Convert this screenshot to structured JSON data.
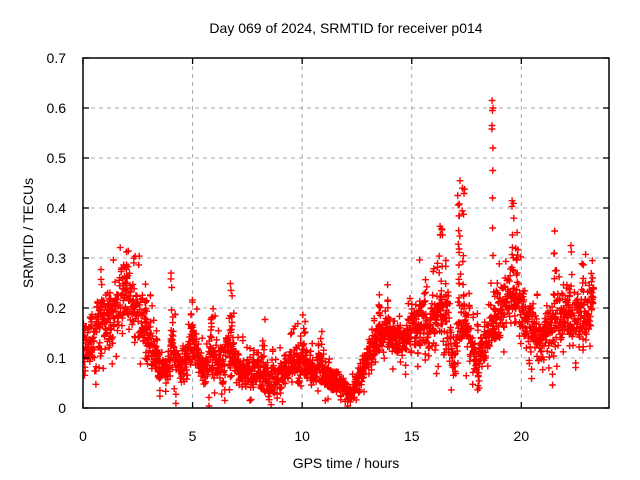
{
  "title": "Day 069 of 2024, SRMTID for receiver p014",
  "colors": {
    "background": "#ffffff",
    "points": "#ff0000",
    "grid": "#a8a8a8",
    "axis": "#000000",
    "text": "#000000"
  },
  "chart_data": {
    "type": "scatter",
    "title": "Day 069 of 2024, SRMTID for receiver p014",
    "xlabel": "GPS time / hours",
    "ylabel": "SRMTID / TECUs",
    "marker": "plus",
    "marker_color": "#ff0000",
    "grid": true,
    "legend": "none",
    "xlim": [
      0,
      24
    ],
    "ylim": [
      0,
      0.7
    ],
    "xticks": [
      0,
      5,
      10,
      15,
      20
    ],
    "xticklabels": [
      "0",
      "5",
      "10",
      "15",
      "20"
    ],
    "yticks": [
      0,
      0.1,
      0.2,
      0.3,
      0.4,
      0.5,
      0.6,
      0.7
    ],
    "yticklabels": [
      "0",
      "0.1",
      "0.2",
      "0.3",
      "0.4",
      "0.5",
      "0.6",
      "0.7"
    ],
    "x_data_range": [
      0,
      23.3
    ],
    "n_points": 2100,
    "seed": 69,
    "envelope_knots_t_lo_hi": [
      [
        0.0,
        0.06,
        0.17
      ],
      [
        0.3,
        0.07,
        0.2
      ],
      [
        0.7,
        0.09,
        0.23
      ],
      [
        1.1,
        0.11,
        0.25
      ],
      [
        1.5,
        0.13,
        0.28
      ],
      [
        1.9,
        0.16,
        0.3
      ],
      [
        2.2,
        0.13,
        0.28
      ],
      [
        2.6,
        0.11,
        0.25
      ],
      [
        3.0,
        0.08,
        0.2
      ],
      [
        3.4,
        0.05,
        0.13
      ],
      [
        3.8,
        0.04,
        0.12
      ],
      [
        4.1,
        0.06,
        0.18
      ],
      [
        4.45,
        0.04,
        0.11
      ],
      [
        4.8,
        0.06,
        0.16
      ],
      [
        5.1,
        0.07,
        0.18
      ],
      [
        5.5,
        0.04,
        0.12
      ],
      [
        5.9,
        0.05,
        0.15
      ],
      [
        6.3,
        0.05,
        0.15
      ],
      [
        6.7,
        0.06,
        0.18
      ],
      [
        7.1,
        0.04,
        0.13
      ],
      [
        7.5,
        0.03,
        0.1
      ],
      [
        8.0,
        0.03,
        0.12
      ],
      [
        8.5,
        0.02,
        0.09
      ],
      [
        9.0,
        0.03,
        0.1
      ],
      [
        9.5,
        0.04,
        0.12
      ],
      [
        10.0,
        0.05,
        0.15
      ],
      [
        10.4,
        0.04,
        0.11
      ],
      [
        10.8,
        0.04,
        0.13
      ],
      [
        11.2,
        0.03,
        0.09
      ],
      [
        11.6,
        0.02,
        0.08
      ],
      [
        12.0,
        0.01,
        0.06
      ],
      [
        12.3,
        0.005,
        0.05
      ],
      [
        12.6,
        0.03,
        0.09
      ],
      [
        13.0,
        0.07,
        0.14
      ],
      [
        13.4,
        0.1,
        0.17
      ],
      [
        13.8,
        0.11,
        0.19
      ],
      [
        14.2,
        0.1,
        0.18
      ],
      [
        14.6,
        0.1,
        0.17
      ],
      [
        15.0,
        0.1,
        0.2
      ],
      [
        15.4,
        0.11,
        0.23
      ],
      [
        15.8,
        0.09,
        0.21
      ],
      [
        16.2,
        0.11,
        0.27
      ],
      [
        16.6,
        0.09,
        0.24
      ],
      [
        16.9,
        0.05,
        0.14
      ],
      [
        17.2,
        0.09,
        0.26
      ],
      [
        17.6,
        0.09,
        0.21
      ],
      [
        18.0,
        0.03,
        0.13
      ],
      [
        18.4,
        0.07,
        0.19
      ],
      [
        18.8,
        0.11,
        0.23
      ],
      [
        19.2,
        0.14,
        0.28
      ],
      [
        19.6,
        0.15,
        0.3
      ],
      [
        20.0,
        0.13,
        0.26
      ],
      [
        20.4,
        0.1,
        0.22
      ],
      [
        20.8,
        0.07,
        0.19
      ],
      [
        21.2,
        0.09,
        0.21
      ],
      [
        21.6,
        0.11,
        0.25
      ],
      [
        22.0,
        0.12,
        0.25
      ],
      [
        22.4,
        0.11,
        0.23
      ],
      [
        22.8,
        0.1,
        0.24
      ],
      [
        23.1,
        0.13,
        0.27
      ],
      [
        23.3,
        0.17,
        0.3
      ]
    ],
    "spike_columns": [
      {
        "t": 2.0,
        "ymin": 0.22,
        "ymax": 0.305,
        "n": 8
      },
      {
        "t": 2.85,
        "ymin": 0.15,
        "ymax": 0.27,
        "n": 8
      },
      {
        "t": 4.05,
        "ymin": 0.1,
        "ymax": 0.28,
        "n": 8
      },
      {
        "t": 4.95,
        "ymin": 0.12,
        "ymax": 0.25,
        "n": 7
      },
      {
        "t": 5.9,
        "ymin": 0.1,
        "ymax": 0.21,
        "n": 5
      },
      {
        "t": 6.75,
        "ymin": 0.12,
        "ymax": 0.25,
        "n": 8
      },
      {
        "t": 8.25,
        "ymin": 0.08,
        "ymax": 0.18,
        "n": 5
      },
      {
        "t": 10.05,
        "ymin": 0.1,
        "ymax": 0.21,
        "n": 6
      },
      {
        "t": 10.85,
        "ymin": 0.08,
        "ymax": 0.16,
        "n": 5
      },
      {
        "t": 13.5,
        "ymin": 0.15,
        "ymax": 0.23,
        "n": 5
      },
      {
        "t": 13.85,
        "ymin": 0.15,
        "ymax": 0.25,
        "n": 6
      },
      {
        "t": 15.35,
        "ymin": 0.18,
        "ymax": 0.31,
        "n": 6
      },
      {
        "t": 16.35,
        "ymin": 0.2,
        "ymax": 0.38,
        "n": 10
      },
      {
        "t": 16.6,
        "ymin": 0.18,
        "ymax": 0.35,
        "n": 7
      },
      {
        "t": 17.15,
        "ymin": 0.25,
        "ymax": 0.46,
        "n": 12
      },
      {
        "t": 17.35,
        "ymin": 0.22,
        "ymax": 0.44,
        "n": 9
      },
      {
        "t": 19.6,
        "ymin": 0.25,
        "ymax": 0.42,
        "n": 9
      },
      {
        "t": 19.8,
        "ymin": 0.22,
        "ymax": 0.38,
        "n": 6
      },
      {
        "t": 21.55,
        "ymin": 0.22,
        "ymax": 0.37,
        "n": 8
      },
      {
        "t": 22.25,
        "ymin": 0.22,
        "ymax": 0.33,
        "n": 6
      },
      {
        "t": 22.85,
        "ymin": 0.2,
        "ymax": 0.33,
        "n": 6
      },
      {
        "t": 23.2,
        "ymin": 0.18,
        "ymax": 0.3,
        "n": 5
      },
      {
        "t": 18.68,
        "ys": [
          0.615,
          0.6,
          0.595,
          0.565,
          0.558,
          0.52,
          0.475,
          0.42,
          0.36,
          0.305
        ]
      }
    ]
  }
}
